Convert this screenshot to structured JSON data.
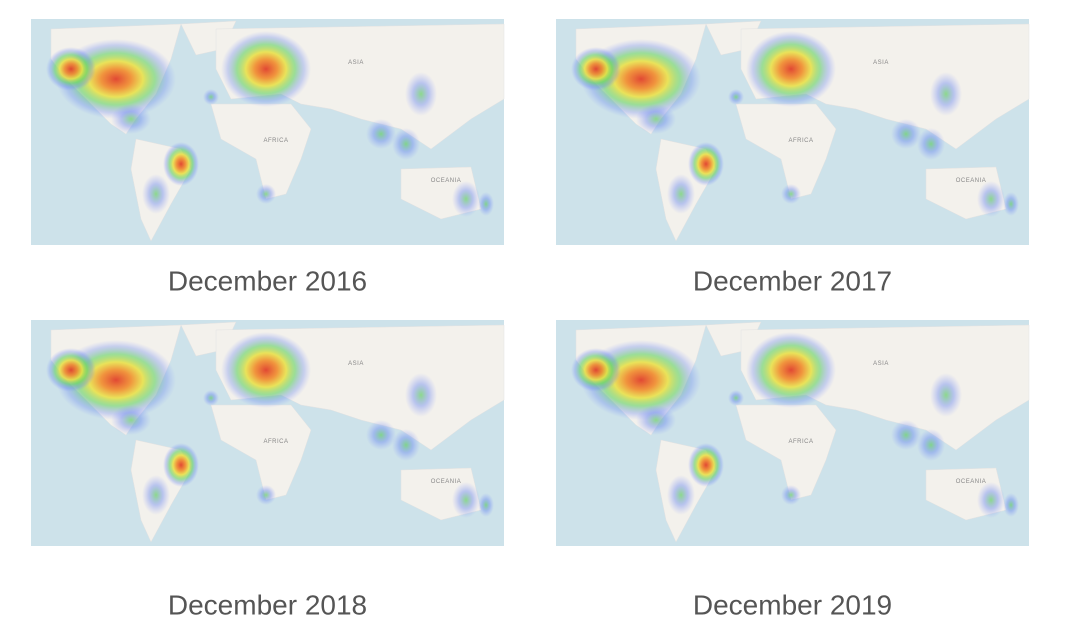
{
  "panels": [
    {
      "caption": "December 2016"
    },
    {
      "caption": "December 2017"
    },
    {
      "caption": "December 2018"
    },
    {
      "caption": "December 2019"
    }
  ],
  "map_labels": [
    "ASIA",
    "AFRICA",
    "OCEANIA"
  ]
}
